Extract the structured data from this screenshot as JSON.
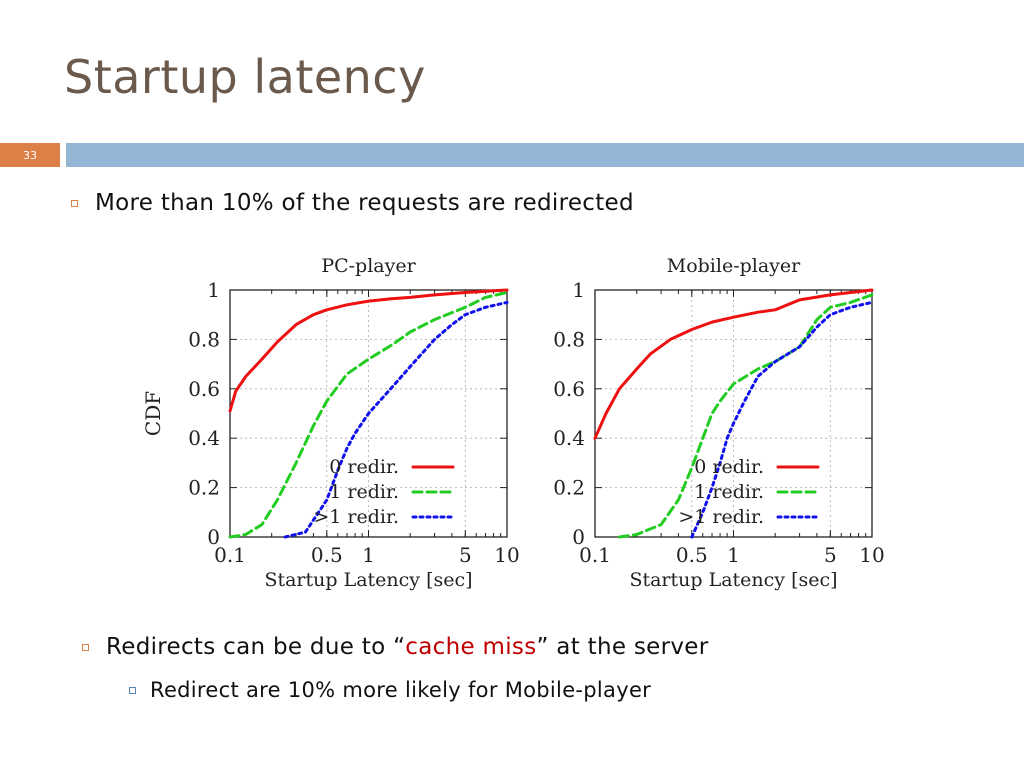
{
  "slide": {
    "title": "Startup latency",
    "number": "33"
  },
  "bullets": {
    "b1": "More than 10% of the requests are redirected",
    "b2_pre": "Redirects can be due to “",
    "b2_red": "cache miss",
    "b2_post": "” at the server",
    "b3": "Redirect are 10% more likely for Mobile-player"
  },
  "colors": {
    "accent_orange": "#dd8047",
    "band_blue": "#93b6d4",
    "title_brown": "#6b5a4c",
    "highlight_red": "#c00000"
  },
  "chart_data": [
    {
      "type": "line",
      "title": "PC-player",
      "xlabel": "Startup Latency [sec]",
      "ylabel": "CDF",
      "xscale": "log",
      "xlim": [
        0.1,
        10
      ],
      "ylim": [
        0,
        1
      ],
      "xticks": [
        "0.1",
        "0.5",
        "1",
        "5",
        "10"
      ],
      "yticks": [
        "0",
        "0.2",
        "0.4",
        "0.6",
        "0.8",
        "1"
      ],
      "grid": true,
      "legend_position": "bottom-right",
      "series": [
        {
          "name": "0 redir.",
          "color": "#ee1111",
          "dash": "solid",
          "points": [
            [
              0.1,
              0.51
            ],
            [
              0.11,
              0.59
            ],
            [
              0.13,
              0.65
            ],
            [
              0.17,
              0.72
            ],
            [
              0.22,
              0.79
            ],
            [
              0.3,
              0.86
            ],
            [
              0.4,
              0.9
            ],
            [
              0.5,
              0.92
            ],
            [
              0.7,
              0.94
            ],
            [
              1,
              0.955
            ],
            [
              1.5,
              0.965
            ],
            [
              2,
              0.97
            ],
            [
              3,
              0.98
            ],
            [
              5,
              0.99
            ],
            [
              10,
              1.0
            ]
          ]
        },
        {
          "name": "1 redir.",
          "color": "#22cc22",
          "dash": "dashed",
          "points": [
            [
              0.1,
              0.0
            ],
            [
              0.13,
              0.01
            ],
            [
              0.17,
              0.05
            ],
            [
              0.22,
              0.15
            ],
            [
              0.3,
              0.3
            ],
            [
              0.4,
              0.45
            ],
            [
              0.5,
              0.55
            ],
            [
              0.7,
              0.66
            ],
            [
              1,
              0.72
            ],
            [
              1.5,
              0.78
            ],
            [
              2,
              0.83
            ],
            [
              3,
              0.88
            ],
            [
              5,
              0.93
            ],
            [
              7,
              0.97
            ],
            [
              10,
              0.99
            ]
          ]
        },
        {
          "name": ">1 redir.",
          "color": "#1111ee",
          "dash": "dotted",
          "points": [
            [
              0.25,
              0.0
            ],
            [
              0.35,
              0.02
            ],
            [
              0.5,
              0.15
            ],
            [
              0.6,
              0.27
            ],
            [
              0.7,
              0.36
            ],
            [
              0.8,
              0.42
            ],
            [
              1,
              0.5
            ],
            [
              1.5,
              0.61
            ],
            [
              2,
              0.69
            ],
            [
              3,
              0.8
            ],
            [
              4,
              0.86
            ],
            [
              5,
              0.9
            ],
            [
              7,
              0.93
            ],
            [
              10,
              0.95
            ]
          ]
        }
      ]
    },
    {
      "type": "line",
      "title": "Mobile-player",
      "xlabel": "Startup Latency [sec]",
      "ylabel": "",
      "xscale": "log",
      "xlim": [
        0.1,
        10
      ],
      "ylim": [
        0,
        1
      ],
      "xticks": [
        "0.1",
        "0.5",
        "1",
        "5",
        "10"
      ],
      "yticks": [
        "0",
        "0.2",
        "0.4",
        "0.6",
        "0.8",
        "1"
      ],
      "grid": true,
      "legend_position": "bottom-right",
      "series": [
        {
          "name": "0 redir.",
          "color": "#ee1111",
          "dash": "solid",
          "points": [
            [
              0.1,
              0.4
            ],
            [
              0.12,
              0.5
            ],
            [
              0.15,
              0.6
            ],
            [
              0.2,
              0.68
            ],
            [
              0.25,
              0.74
            ],
            [
              0.35,
              0.8
            ],
            [
              0.5,
              0.84
            ],
            [
              0.7,
              0.87
            ],
            [
              1,
              0.89
            ],
            [
              1.5,
              0.91
            ],
            [
              2,
              0.92
            ],
            [
              3,
              0.96
            ],
            [
              5,
              0.98
            ],
            [
              10,
              1.0
            ]
          ]
        },
        {
          "name": "1 redir.",
          "color": "#22cc22",
          "dash": "dashed",
          "points": [
            [
              0.15,
              0.0
            ],
            [
              0.2,
              0.01
            ],
            [
              0.3,
              0.05
            ],
            [
              0.4,
              0.15
            ],
            [
              0.5,
              0.28
            ],
            [
              0.6,
              0.4
            ],
            [
              0.7,
              0.5
            ],
            [
              0.8,
              0.55
            ],
            [
              1,
              0.62
            ],
            [
              1.5,
              0.68
            ],
            [
              2,
              0.71
            ],
            [
              3,
              0.77
            ],
            [
              4,
              0.88
            ],
            [
              5,
              0.93
            ],
            [
              7,
              0.95
            ],
            [
              10,
              0.98
            ]
          ]
        },
        {
          "name": ">1 redir.",
          "color": "#1111ee",
          "dash": "dotted",
          "points": [
            [
              0.5,
              0.0
            ],
            [
              0.6,
              0.1
            ],
            [
              0.7,
              0.2
            ],
            [
              0.8,
              0.3
            ],
            [
              0.9,
              0.4
            ],
            [
              1,
              0.46
            ],
            [
              1.2,
              0.55
            ],
            [
              1.5,
              0.65
            ],
            [
              2,
              0.71
            ],
            [
              3,
              0.77
            ],
            [
              4,
              0.85
            ],
            [
              5,
              0.9
            ],
            [
              7,
              0.93
            ],
            [
              10,
              0.95
            ]
          ]
        }
      ]
    }
  ]
}
